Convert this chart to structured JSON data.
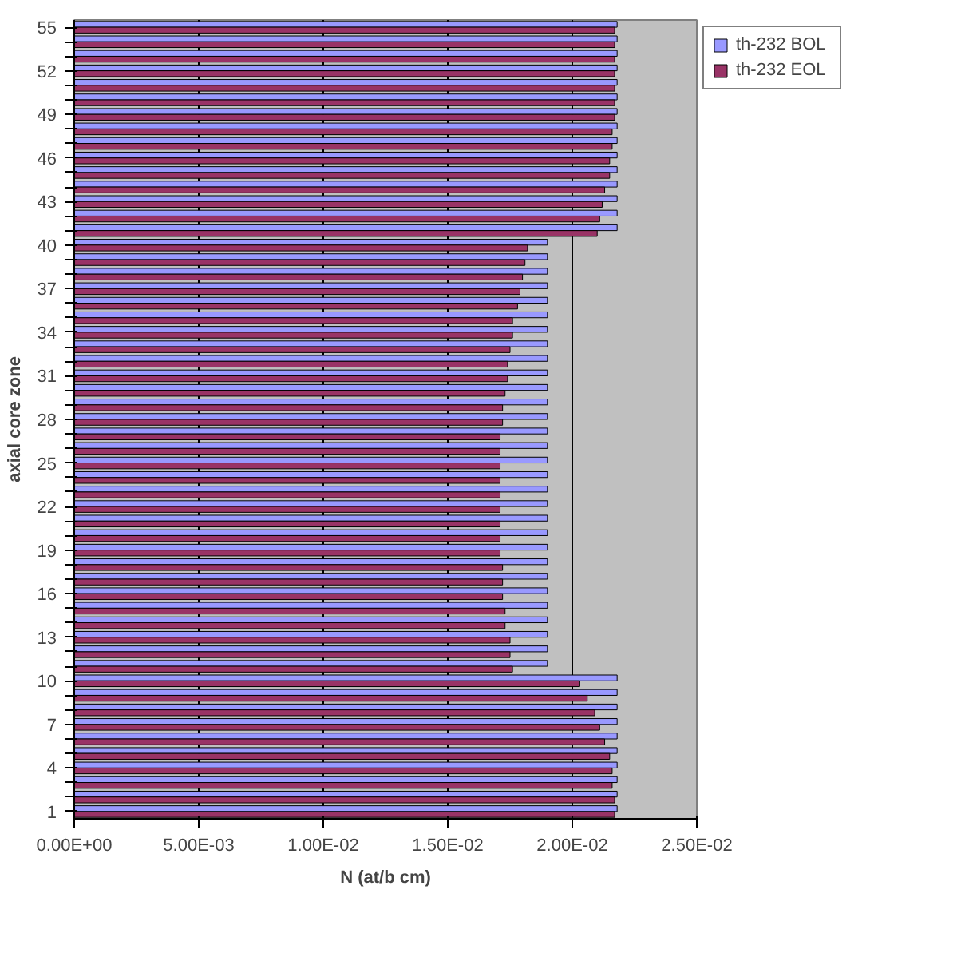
{
  "chart_data": {
    "type": "bar",
    "orientation": "horizontal",
    "xlabel": "N (at/b cm)",
    "ylabel": "axial core zone",
    "categories": [
      "55",
      null,
      null,
      "52",
      null,
      null,
      "49",
      null,
      null,
      "46",
      null,
      null,
      "43",
      null,
      null,
      "40",
      null,
      null,
      "37",
      null,
      null,
      "34",
      null,
      null,
      "31",
      null,
      null,
      "28",
      null,
      null,
      "25",
      null,
      null,
      "22",
      null,
      null,
      "19",
      null,
      null,
      "16",
      null,
      null,
      "13",
      null,
      null,
      "10",
      null,
      null,
      "7",
      null,
      null,
      "4",
      null,
      null,
      "1"
    ],
    "series": [
      {
        "name": "th-232 BOL",
        "color": "#9999ff",
        "values": [
          0.0218,
          0.0218,
          0.0218,
          0.0218,
          0.0218,
          0.0218,
          0.0218,
          0.0218,
          0.0218,
          0.0218,
          0.0218,
          0.0218,
          0.0218,
          0.0218,
          0.0218,
          0.019,
          0.019,
          0.019,
          0.019,
          0.019,
          0.019,
          0.019,
          0.019,
          0.019,
          0.019,
          0.019,
          0.019,
          0.019,
          0.019,
          0.019,
          0.019,
          0.019,
          0.019,
          0.019,
          0.019,
          0.019,
          0.019,
          0.019,
          0.019,
          0.019,
          0.019,
          0.019,
          0.019,
          0.019,
          0.019,
          0.0218,
          0.0218,
          0.0218,
          0.0218,
          0.0218,
          0.0218,
          0.0218,
          0.0218,
          0.0218,
          0.0218
        ]
      },
      {
        "name": "th-232 EOL",
        "color": "#993366",
        "values": [
          0.0217,
          0.0217,
          0.0217,
          0.0217,
          0.0217,
          0.0217,
          0.0217,
          0.0216,
          0.0216,
          0.0215,
          0.0215,
          0.0213,
          0.0212,
          0.0211,
          0.021,
          0.0182,
          0.0181,
          0.018,
          0.0179,
          0.0178,
          0.0176,
          0.0176,
          0.0175,
          0.0174,
          0.0174,
          0.0173,
          0.0172,
          0.0172,
          0.0171,
          0.0171,
          0.0171,
          0.0171,
          0.0171,
          0.0171,
          0.0171,
          0.0171,
          0.0171,
          0.0172,
          0.0172,
          0.0172,
          0.0173,
          0.0173,
          0.0175,
          0.0175,
          0.0176,
          0.0203,
          0.0206,
          0.0209,
          0.0211,
          0.0213,
          0.0215,
          0.0216,
          0.0216,
          0.0217,
          0.0217
        ]
      }
    ],
    "xlim": [
      0,
      0.025
    ],
    "xticks": [
      {
        "value": 0,
        "label": "0.00E+00"
      },
      {
        "value": 0.005,
        "label": "5.00E-03"
      },
      {
        "value": 0.01,
        "label": "1.00E-02"
      },
      {
        "value": 0.015,
        "label": "1.50E-02"
      },
      {
        "value": 0.02,
        "label": "2.00E-02"
      },
      {
        "value": 0.025,
        "label": "2.50E-02"
      }
    ],
    "grid": "x",
    "legend": "right"
  }
}
